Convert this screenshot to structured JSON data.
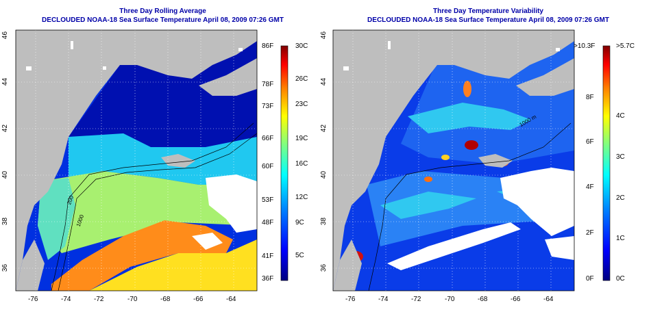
{
  "left_panel": {
    "title_line1": "Three Day Rolling Average",
    "title_line2": "DECLOUDED NOAA-18 Sea Surface Temperature April 08, 2009 07:26 GMT",
    "x_ticks": [
      "-76",
      "-74",
      "-72",
      "-70",
      "-68",
      "-66",
      "-64"
    ],
    "y_ticks": [
      "36",
      "38",
      "40",
      "42",
      "44",
      "46"
    ],
    "colorbar_fahrenheit": [
      "86F",
      "78F",
      "73F",
      "66F",
      "60F",
      "53F",
      "48F",
      "41F",
      "36F"
    ],
    "colorbar_celsius": [
      "30C",
      "26C",
      "23C",
      "19C",
      "16C",
      "12C",
      "9C",
      "5C"
    ],
    "contour_labels": [
      "200",
      "1000"
    ]
  },
  "right_panel": {
    "title_line1": "Three Day Temperature Variability",
    "title_line2": "DECLOUDED NOAA-18 Sea Surface Temperature April 08, 2009 07:26 GMT",
    "x_ticks": [
      "-76",
      "-74",
      "-72",
      "-70",
      "-68",
      "-66",
      "-64"
    ],
    "y_ticks": [
      "36",
      "38",
      "40",
      "42",
      "44",
      "46"
    ],
    "colorbar_fahrenheit": [
      ">10.3F",
      "8F",
      "6F",
      "4F",
      "2F",
      "0F"
    ],
    "colorbar_celsius": [
      ">5.7C",
      "4C",
      "3C",
      "2C",
      "1C",
      "0C"
    ],
    "contour_labels": [
      "1000 m"
    ]
  },
  "colors": {
    "land": "#bebebe",
    "no_data": "#ffffff",
    "title": "#0000a8",
    "colormap": [
      "#000080",
      "#0000ff",
      "#0080ff",
      "#00ffff",
      "#80ff80",
      "#ffff00",
      "#ff8000",
      "#ff0000",
      "#800000"
    ]
  }
}
